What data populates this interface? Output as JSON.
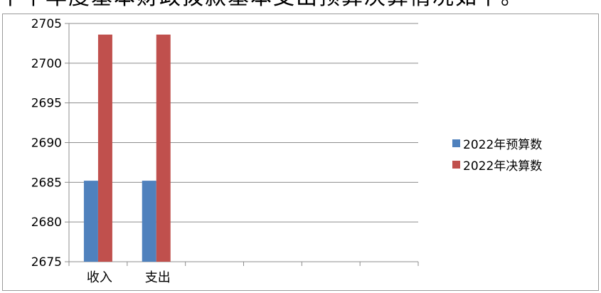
{
  "page": {
    "cut_title": "下半年度基本财政拨款基本支出预算决算情况如下。"
  },
  "chart_data": {
    "type": "bar",
    "categories": [
      "收入",
      "支出",
      "",
      "",
      "",
      ""
    ],
    "ylim": [
      2675,
      2705
    ],
    "yticks": [
      2675,
      2680,
      2685,
      2690,
      2695,
      2700,
      2705
    ],
    "grid": true,
    "legend_position": "right",
    "series": [
      {
        "name": "2022年预算数",
        "color": "#4f81bd",
        "values": [
          2685.2,
          2685.2,
          null,
          null,
          null,
          null
        ]
      },
      {
        "name": "2022年决算数",
        "color": "#c0504d",
        "values": [
          2703.6,
          2703.6,
          null,
          null,
          null,
          null
        ]
      }
    ]
  }
}
